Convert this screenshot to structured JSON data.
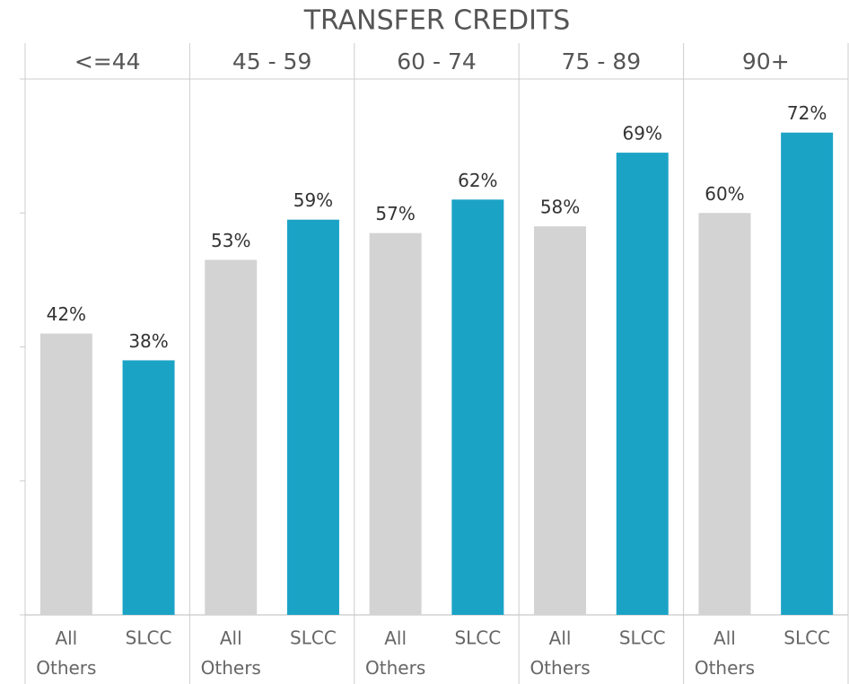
{
  "chart_data": {
    "type": "bar",
    "title": "TRANSFER CREDITS",
    "groups": [
      "<=44",
      "45 - 59",
      "60 - 74",
      "75 - 89",
      "90+"
    ],
    "series": [
      {
        "name": "All Others",
        "color": "#d3d3d3",
        "values": [
          42,
          53,
          57,
          58,
          60
        ],
        "value_labels": [
          "42%",
          "53%",
          "57%",
          "58%",
          "60%"
        ]
      },
      {
        "name": "SLCC",
        "color": "#1ba3c6",
        "values": [
          38,
          59,
          62,
          69,
          72
        ],
        "value_labels": [
          "38%",
          "59%",
          "62%",
          "69%",
          "72%"
        ]
      }
    ],
    "ylim": [
      0,
      80
    ],
    "yticks": [
      0,
      20,
      40,
      60,
      80
    ]
  }
}
